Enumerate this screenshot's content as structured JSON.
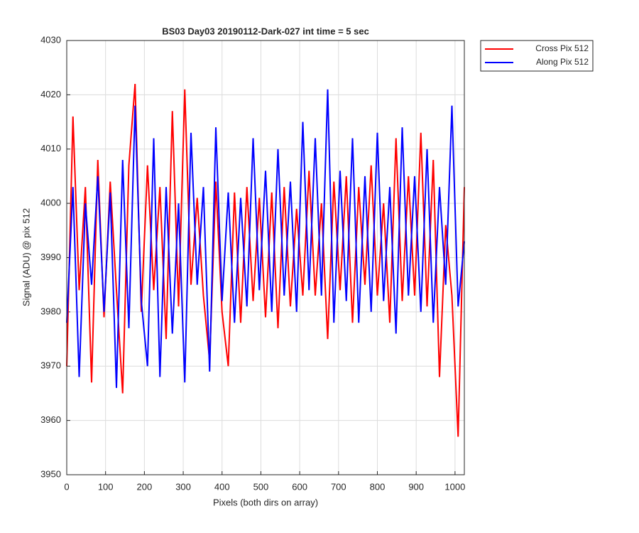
{
  "chart_data": {
    "type": "line",
    "title": "BS03 Day03 20190112-Dark-027 int time = 5 sec",
    "xlabel": "Pixels (both dirs on array)",
    "ylabel": "Signal (ADU) @ pix 512",
    "x": [
      0,
      16,
      32,
      48,
      64,
      80,
      96,
      112,
      128,
      144,
      160,
      176,
      192,
      208,
      224,
      240,
      256,
      272,
      288,
      304,
      320,
      336,
      352,
      368,
      384,
      400,
      416,
      432,
      448,
      464,
      480,
      496,
      512,
      528,
      544,
      560,
      576,
      592,
      608,
      624,
      640,
      656,
      672,
      688,
      704,
      720,
      736,
      752,
      768,
      784,
      800,
      816,
      832,
      848,
      864,
      880,
      896,
      912,
      928,
      944,
      960,
      976,
      992,
      1008,
      1024
    ],
    "series": [
      {
        "name": "Cross Pix 512",
        "color": "#ff0000",
        "values": [
          3970,
          4016,
          3984,
          4003,
          3967,
          4008,
          3979,
          4004,
          3984,
          3965,
          4007,
          4022,
          3980,
          4007,
          3984,
          4003,
          3975,
          4017,
          3981,
          4021,
          3985,
          4001,
          3983,
          3971,
          4004,
          3980,
          3970,
          4002,
          3978,
          4003,
          3982,
          4001,
          3979,
          4002,
          3977,
          4003,
          3981,
          3999,
          3983,
          4006,
          3983,
          4000,
          3975,
          4004,
          3984,
          4005,
          3978,
          4003,
          3985,
          4007,
          3983,
          4000,
          3978,
          4012,
          3982,
          4005,
          3983,
          4013,
          3981,
          4008,
          3968,
          3996,
          3983,
          3957,
          4003
        ]
      },
      {
        "name": "Along Pix 512",
        "color": "#0000ff",
        "values": [
          3978,
          4003,
          3968,
          4000,
          3985,
          4005,
          3980,
          4002,
          3966,
          4008,
          3977,
          4018,
          3982,
          3970,
          4012,
          3968,
          4003,
          3976,
          4000,
          3967,
          4013,
          3985,
          4003,
          3969,
          4014,
          3982,
          4002,
          3978,
          4001,
          3981,
          4012,
          3984,
          4006,
          3980,
          4010,
          3983,
          4004,
          3980,
          4015,
          3984,
          4012,
          3983,
          4021,
          3978,
          4006,
          3982,
          4012,
          3978,
          4005,
          3980,
          4013,
          3982,
          4003,
          3976,
          4014,
          3983,
          4005,
          3980,
          4010,
          3978,
          4003,
          3985,
          4018,
          3981,
          3993
        ]
      }
    ],
    "xlim": [
      0,
      1024
    ],
    "xticks": [
      0,
      100,
      200,
      300,
      400,
      500,
      600,
      700,
      800,
      900,
      1000
    ],
    "ylim": [
      3950,
      4030
    ],
    "yticks": [
      3950,
      3960,
      3970,
      3980,
      3990,
      4000,
      4010,
      4020,
      4030
    ],
    "grid": true,
    "legend": "northeastoutside"
  }
}
